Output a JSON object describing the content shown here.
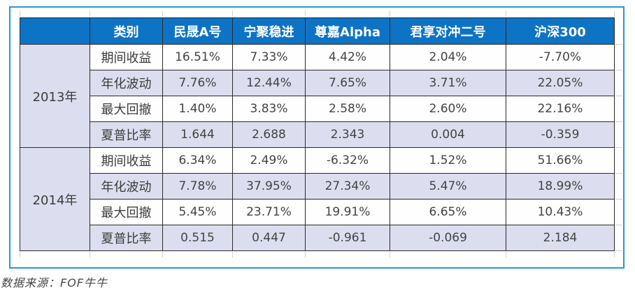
{
  "chart_data": {
    "type": "table",
    "columns": [
      "",
      "类别",
      "民晟A号",
      "宁聚稳进",
      "尊嘉Alpha",
      "君享对冲二号",
      "沪深300"
    ],
    "groups": [
      {
        "year": "2013年",
        "rows": [
          {
            "metric": "期间收益",
            "values": [
              "16.51%",
              "7.33%",
              "4.42%",
              "2.04%",
              "-7.70%"
            ]
          },
          {
            "metric": "年化波动",
            "values": [
              "7.76%",
              "12.44%",
              "7.65%",
              "3.71%",
              "22.05%"
            ]
          },
          {
            "metric": "最大回撤",
            "values": [
              "1.40%",
              "3.83%",
              "2.58%",
              "2.60%",
              "22.16%"
            ]
          },
          {
            "metric": "夏普比率",
            "values": [
              "1.644",
              "2.688",
              "2.343",
              "0.004",
              "-0.359"
            ]
          }
        ]
      },
      {
        "year": "2014年",
        "rows": [
          {
            "metric": "期间收益",
            "values": [
              "6.34%",
              "2.49%",
              "-6.32%",
              "1.52%",
              "51.66%"
            ]
          },
          {
            "metric": "年化波动",
            "values": [
              "7.78%",
              "37.95%",
              "27.34%",
              "5.47%",
              "18.99%"
            ]
          },
          {
            "metric": "最大回撤",
            "values": [
              "5.45%",
              "23.71%",
              "19.91%",
              "6.65%",
              "10.43%"
            ]
          },
          {
            "metric": "夏普比率",
            "values": [
              "0.515",
              "0.447",
              "-0.961",
              "-0.069",
              "2.184"
            ]
          }
        ]
      }
    ]
  },
  "colors": {
    "header_bg": "#0d73c4",
    "header_text": "#ffffff",
    "stripe_row_bg": "#dcdeef",
    "plain_row_bg": "#fefefe",
    "cell_border": "#2a2a2a",
    "frame_border": "#2497e2",
    "body_text": "#3c3c3c"
  },
  "footer": {
    "source_label": "数据来源：FOF牛牛"
  }
}
